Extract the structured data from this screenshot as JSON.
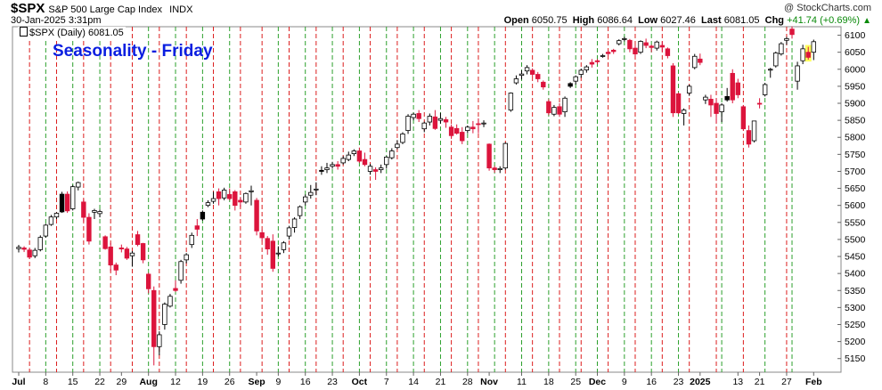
{
  "header": {
    "symbol": "$SPX",
    "description": "S&P 500 Large Cap Index",
    "exchange": "INDX",
    "credit": "@ StockCharts.com",
    "datetime": "30-Jan-2025 3:31pm",
    "open_label": "Open",
    "open": "6050.75",
    "high_label": "High",
    "high": "6086.64",
    "low_label": "Low",
    "low": "6027.46",
    "last_label": "Last",
    "last": "6081.05",
    "chg_label": "Chg",
    "chg": "+41.74 (+0.69%)"
  },
  "legend": {
    "series": "$SPX (Daily) 6081.05"
  },
  "colors": {
    "up": "#ffffff",
    "down": "#dc143c",
    "up_gap": "#000000",
    "monday_line": "#2ca02c",
    "friday_line": "#dc1e1e",
    "title": "#0a1ee0",
    "chg": "#0a8a0a"
  },
  "chart_data": {
    "type": "candlestick",
    "title": "Seasonality - Friday",
    "y_axis": {
      "side": "right",
      "ticks": [
        5150,
        5200,
        5250,
        5300,
        5350,
        5400,
        5450,
        5500,
        5550,
        5600,
        5650,
        5700,
        5750,
        5800,
        5850,
        5900,
        5950,
        6000,
        6050,
        6100
      ],
      "range": [
        5110,
        6125
      ]
    },
    "x_axis": {
      "tick_labels": [
        "Jul",
        "8",
        "15",
        "22",
        "29",
        "Aug",
        "12",
        "19",
        "26",
        "Sep",
        "9",
        "16",
        "23",
        "Oct",
        "7",
        "14",
        "21",
        "28",
        "Nov",
        "11",
        "18",
        "25",
        "Dec",
        "9",
        "16",
        "23",
        "2025",
        "13",
        "21",
        "27",
        "Feb"
      ],
      "tick_index": [
        0,
        5,
        10,
        15,
        19,
        24,
        29,
        34,
        39,
        44,
        48,
        53,
        58,
        63,
        68,
        73,
        78,
        83,
        87,
        93,
        98,
        103,
        107,
        112,
        117,
        122,
        126,
        133,
        137,
        142,
        147
      ],
      "bold_labels": [
        "Jul",
        "Aug",
        "Sep",
        "Oct",
        "Nov",
        "Dec",
        "2025",
        "Feb"
      ]
    },
    "vertical_lines": {
      "monday_green": [
        5,
        10,
        15,
        24,
        29,
        34,
        39,
        48,
        53,
        58,
        63,
        68,
        73,
        78,
        83,
        88,
        93,
        98,
        103,
        107,
        112,
        117,
        122,
        130,
        138,
        143
      ],
      "friday_red": [
        2,
        7,
        12,
        17,
        21,
        26,
        31,
        36,
        41,
        45,
        50,
        55,
        60,
        65,
        70,
        75,
        80,
        85,
        90,
        95,
        100,
        104,
        109,
        114,
        119,
        124,
        129,
        134,
        142
      ]
    },
    "candles": [
      [
        5473,
        5484,
        5462,
        5477
      ],
      [
        5475,
        5480,
        5463,
        5471
      ],
      [
        5469,
        5474,
        5443,
        5448
      ],
      [
        5452,
        5475,
        5445,
        5468
      ],
      [
        5470,
        5512,
        5465,
        5506
      ],
      [
        5510,
        5546,
        5505,
        5542
      ],
      [
        5544,
        5572,
        5540,
        5566
      ],
      [
        5566,
        5580,
        5560,
        5577
      ],
      [
        5581,
        5640,
        5578,
        5633
      ],
      [
        5633,
        5641,
        5578,
        5584
      ],
      [
        5590,
        5660,
        5585,
        5655
      ],
      [
        5654,
        5670,
        5644,
        5667
      ],
      [
        5610,
        5618,
        5552,
        5565
      ],
      [
        5565,
        5577,
        5485,
        5495
      ],
      [
        5580,
        5590,
        5560,
        5585
      ],
      [
        5576,
        5588,
        5565,
        5582
      ],
      [
        5508,
        5512,
        5470,
        5473
      ],
      [
        5478,
        5490,
        5406,
        5425
      ],
      [
        5425,
        5432,
        5395,
        5410
      ],
      [
        5475,
        5485,
        5462,
        5472
      ],
      [
        5472,
        5478,
        5440,
        5445
      ],
      [
        5452,
        5466,
        5420,
        5460
      ],
      [
        5514,
        5525,
        5480,
        5485
      ],
      [
        5488,
        5490,
        5430,
        5440
      ],
      [
        5398,
        5402,
        5342,
        5355
      ],
      [
        5350,
        5362,
        5130,
        5185
      ],
      [
        5185,
        5230,
        5160,
        5220
      ],
      [
        5250,
        5315,
        5235,
        5310
      ],
      [
        5304,
        5340,
        5300,
        5333
      ],
      [
        5356,
        5380,
        5346,
        5350
      ],
      [
        5380,
        5440,
        5370,
        5435
      ],
      [
        5440,
        5460,
        5430,
        5455
      ],
      [
        5485,
        5520,
        5475,
        5512
      ],
      [
        5540,
        5560,
        5510,
        5530
      ],
      [
        5560,
        5585,
        5555,
        5580
      ],
      [
        5600,
        5615,
        5595,
        5608
      ],
      [
        5612,
        5640,
        5605,
        5620
      ],
      [
        5640,
        5650,
        5600,
        5620
      ],
      [
        5622,
        5652,
        5615,
        5645
      ],
      [
        5632,
        5650,
        5615,
        5620
      ],
      [
        5640,
        5645,
        5585,
        5600
      ],
      [
        5615,
        5625,
        5595,
        5610
      ],
      [
        5610,
        5638,
        5605,
        5635
      ],
      [
        5640,
        5658,
        5600,
        5643
      ],
      [
        5615,
        5622,
        5512,
        5525
      ],
      [
        5520,
        5528,
        5495,
        5505
      ],
      [
        5503,
        5510,
        5455,
        5472
      ],
      [
        5495,
        5515,
        5405,
        5415
      ],
      [
        5460,
        5480,
        5450,
        5460
      ],
      [
        5470,
        5495,
        5460,
        5490
      ],
      [
        5510,
        5540,
        5500,
        5534
      ],
      [
        5535,
        5565,
        5520,
        5560
      ],
      [
        5570,
        5600,
        5560,
        5596
      ],
      [
        5610,
        5632,
        5600,
        5625
      ],
      [
        5630,
        5660,
        5620,
        5638
      ],
      [
        5648,
        5668,
        5630,
        5648
      ],
      [
        5700,
        5715,
        5690,
        5703
      ],
      [
        5705,
        5725,
        5695,
        5710
      ],
      [
        5715,
        5728,
        5708,
        5720
      ],
      [
        5720,
        5730,
        5705,
        5715
      ],
      [
        5725,
        5745,
        5720,
        5738
      ],
      [
        5735,
        5758,
        5730,
        5748
      ],
      [
        5752,
        5765,
        5745,
        5760
      ],
      [
        5760,
        5770,
        5725,
        5730
      ],
      [
        5735,
        5755,
        5715,
        5720
      ],
      [
        5700,
        5722,
        5690,
        5715
      ],
      [
        5705,
        5712,
        5675,
        5700
      ],
      [
        5705,
        5720,
        5695,
        5710
      ],
      [
        5720,
        5745,
        5708,
        5742
      ],
      [
        5740,
        5768,
        5735,
        5760
      ],
      [
        5770,
        5792,
        5765,
        5780
      ],
      [
        5785,
        5815,
        5780,
        5810
      ],
      [
        5820,
        5868,
        5810,
        5862
      ],
      [
        5858,
        5872,
        5850,
        5868
      ],
      [
        5870,
        5880,
        5845,
        5855
      ],
      [
        5825,
        5846,
        5815,
        5842
      ],
      [
        5845,
        5870,
        5835,
        5862
      ],
      [
        5860,
        5880,
        5822,
        5826
      ],
      [
        5850,
        5872,
        5840,
        5855
      ],
      [
        5852,
        5860,
        5828,
        5845
      ],
      [
        5830,
        5838,
        5795,
        5805
      ],
      [
        5826,
        5838,
        5808,
        5812
      ],
      [
        5815,
        5830,
        5780,
        5790
      ],
      [
        5820,
        5835,
        5812,
        5830
      ],
      [
        5830,
        5848,
        5812,
        5825
      ],
      [
        5840,
        5856,
        5812,
        5838
      ],
      [
        5840,
        5850,
        5830,
        5842
      ],
      [
        5780,
        5782,
        5702,
        5710
      ],
      [
        5710,
        5716,
        5696,
        5705
      ],
      [
        5705,
        5715,
        5695,
        5708
      ],
      [
        5710,
        5785,
        5705,
        5782
      ],
      [
        5880,
        5932,
        5875,
        5930
      ],
      [
        5960,
        5982,
        5955,
        5972
      ],
      [
        5982,
        5997,
        5970,
        5986
      ],
      [
        5995,
        6012,
        5985,
        6005
      ],
      [
        5997,
        6003,
        5978,
        5985
      ],
      [
        5985,
        5992,
        5962,
        5972
      ],
      [
        5962,
        5967,
        5940,
        5948
      ],
      [
        5905,
        5912,
        5865,
        5872
      ],
      [
        5868,
        5895,
        5862,
        5888
      ],
      [
        5890,
        5900,
        5860,
        5868
      ],
      [
        5875,
        5920,
        5860,
        5915
      ],
      [
        5950,
        5962,
        5945,
        5958
      ],
      [
        5965,
        5982,
        5955,
        5978
      ],
      [
        5985,
        6002,
        5975,
        5997
      ],
      [
        5998,
        6012,
        5990,
        6007
      ],
      [
        6020,
        6030,
        6005,
        6015
      ],
      [
        6025,
        6030,
        6015,
        6022
      ],
      [
        6040,
        6045,
        6034,
        6040
      ],
      [
        6050,
        6055,
        6040,
        6046
      ],
      [
        6056,
        6060,
        6045,
        6052
      ],
      [
        6075,
        6088,
        6070,
        6084
      ],
      [
        6088,
        6095,
        6082,
        6090
      ],
      [
        6085,
        6089,
        6050,
        6060
      ],
      [
        6062,
        6070,
        6035,
        6045
      ],
      [
        6050,
        6085,
        6045,
        6082
      ],
      [
        6078,
        6090,
        6062,
        6070
      ],
      [
        6068,
        6072,
        6050,
        6064
      ],
      [
        6062,
        6084,
        6055,
        6080
      ],
      [
        6070,
        6082,
        6052,
        6065
      ],
      [
        6060,
        6064,
        6032,
        6040
      ],
      [
        6010,
        6018,
        5860,
        5872
      ],
      [
        5928,
        5932,
        5868,
        5872
      ],
      [
        5870,
        5885,
        5835,
        5880
      ],
      [
        5930,
        5955,
        5922,
        5950
      ],
      [
        6005,
        6045,
        6000,
        6038
      ],
      [
        6030,
        6046,
        6012,
        6020
      ],
      [
        5910,
        5925,
        5898,
        5918
      ],
      [
        5912,
        5925,
        5860,
        5895
      ],
      [
        5900,
        5915,
        5842,
        5870
      ],
      [
        5875,
        5900,
        5845,
        5895
      ],
      [
        5910,
        5945,
        5905,
        5920
      ],
      [
        5988,
        6000,
        5900,
        5910
      ],
      [
        5960,
        5972,
        5915,
        5925
      ],
      [
        5890,
        5895,
        5820,
        5825
      ],
      [
        5820,
        5835,
        5770,
        5780
      ],
      [
        5790,
        5848,
        5785,
        5848
      ],
      [
        5900,
        5915,
        5885,
        5898
      ],
      [
        5925,
        5960,
        5920,
        5955
      ],
      [
        5998,
        6004,
        5975,
        6000
      ],
      [
        6010,
        6052,
        6005,
        6048
      ],
      [
        6045,
        6080,
        6040,
        6075
      ],
      [
        6085,
        6095,
        6072,
        6090
      ],
      [
        6118,
        6126,
        6090,
        6102
      ],
      [
        5965,
        6022,
        5940,
        6010
      ],
      [
        6025,
        6072,
        6015,
        6060
      ],
      [
        6050,
        6066,
        6028,
        6035
      ],
      [
        6050,
        6087,
        6027,
        6081
      ]
    ],
    "up_black_index": [
      8,
      19,
      22,
      25,
      34,
      56,
      63,
      102,
      128,
      131
    ],
    "highlight_index": 146
  }
}
